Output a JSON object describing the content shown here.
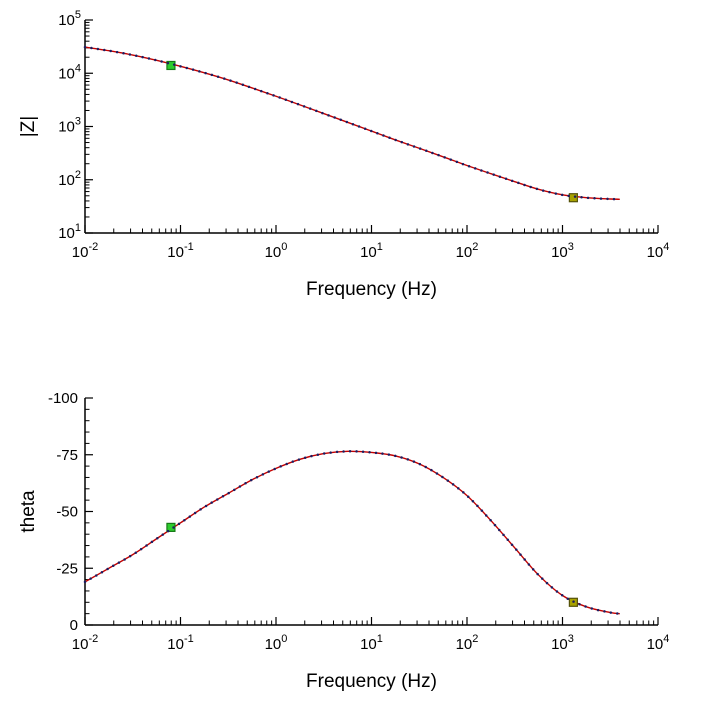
{
  "page": {
    "background": "#ffffff",
    "text_color": "#000000",
    "axis_color": "#000000"
  },
  "chart_data": [
    {
      "id": "impedance",
      "type": "line",
      "title": "",
      "xlabel": "Frequency (Hz)",
      "ylabel": "|Z|",
      "x_scale": "log",
      "y_scale": "log",
      "xlim": [
        0.01,
        10000
      ],
      "ylim": [
        10,
        100000
      ],
      "x_major_ticks": [
        0.01,
        0.1,
        1,
        10,
        100,
        1000,
        10000
      ],
      "y_major_ticks": [
        10,
        100,
        1000,
        10000,
        100000
      ],
      "grid": false,
      "legend": "none",
      "line_color": "#c40000",
      "dot_color": "#1c1c60",
      "x": [
        0.01,
        0.0178,
        0.0316,
        0.0562,
        0.1,
        0.178,
        0.316,
        0.562,
        1,
        1.78,
        3.16,
        5.62,
        10,
        17.8,
        31.6,
        56.2,
        100,
        178,
        316,
        562,
        1000,
        1778,
        3162,
        3981
      ],
      "y": [
        31000,
        26500,
        22000,
        17500,
        13500,
        10200,
        7500,
        5300,
        3700,
        2550,
        1750,
        1200,
        820,
        560,
        390,
        270,
        185,
        130,
        92,
        66,
        52,
        46,
        43.5,
        43
      ],
      "markers": [
        {
          "name": "low-frequency-marker",
          "x": 0.0794,
          "y": 14000,
          "fill": "#2ecc2e",
          "stroke": "#167a16"
        },
        {
          "name": "high-frequency-marker",
          "x": 1300,
          "y": 46,
          "fill": "#a8a200",
          "stroke": "#55520a"
        }
      ]
    },
    {
      "id": "phase",
      "type": "line",
      "title": "",
      "xlabel": "Frequency (Hz)",
      "ylabel": "theta",
      "x_scale": "log",
      "y_scale": "linear",
      "xlim": [
        0.01,
        10000
      ],
      "ylim": [
        0,
        -100
      ],
      "x_major_ticks": [
        0.01,
        0.1,
        1,
        10,
        100,
        1000,
        10000
      ],
      "y_major_ticks": [
        0,
        -25,
        -50,
        -75,
        -100
      ],
      "y_minor_step": 5,
      "grid": false,
      "legend": "none",
      "line_color": "#c40000",
      "dot_color": "#1c1c60",
      "x": [
        0.01,
        0.0178,
        0.0316,
        0.0562,
        0.1,
        0.178,
        0.316,
        0.562,
        1,
        1.78,
        3.16,
        5.62,
        10,
        17.8,
        31.6,
        56.2,
        100,
        178,
        316,
        562,
        1000,
        1778,
        3162,
        3981
      ],
      "y": [
        -19,
        -25,
        -31,
        -38,
        -45,
        -52,
        -58,
        -64,
        -69,
        -73,
        -75.5,
        -76.5,
        -76,
        -74.5,
        -71,
        -65,
        -57,
        -46,
        -34,
        -22,
        -13,
        -8,
        -5.5,
        -5
      ],
      "markers": [
        {
          "name": "low-frequency-marker",
          "x": 0.0794,
          "y": -43,
          "fill": "#2ecc2e",
          "stroke": "#167a16"
        },
        {
          "name": "high-frequency-marker",
          "x": 1300,
          "y": -10,
          "fill": "#a8a200",
          "stroke": "#55520a"
        }
      ]
    }
  ]
}
